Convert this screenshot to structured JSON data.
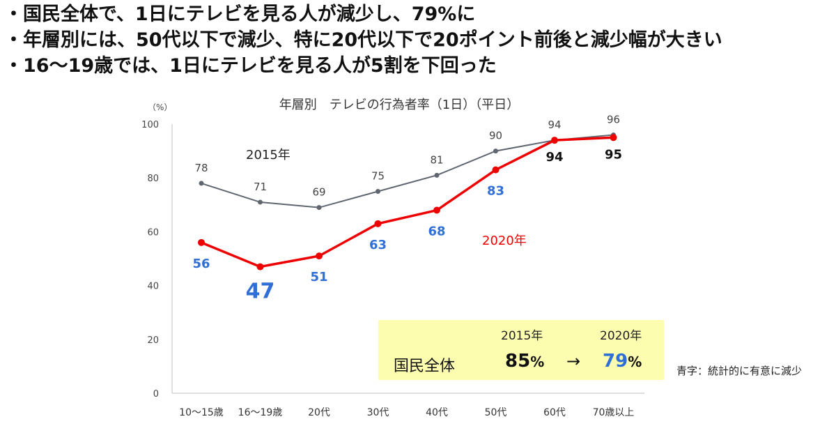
{
  "bullets": [
    "・国民全体で、1日にテレビを見る人が減少し、79%に",
    "・年層別には、50代以下で減少、特に20代以下で20ポイント前後と減少幅が大きい",
    "・16～19歳では、1日にテレビを見る人が5割を下回った"
  ],
  "chart_data": {
    "type": "line",
    "title": "年層別　テレビの行為者率（1日）（平日）",
    "ylabel": "（%）",
    "ylim": [
      0,
      100
    ],
    "yticks": [
      0,
      20,
      40,
      60,
      80,
      100
    ],
    "categories": [
      "10～15歳",
      "16～19歳",
      "20代",
      "30代",
      "40代",
      "50代",
      "60代",
      "70歳以上"
    ],
    "series": [
      {
        "name": "2015年",
        "values": [
          78,
          71,
          69,
          75,
          81,
          90,
          94,
          96
        ],
        "color": "#5f6670"
      },
      {
        "name": "2020年",
        "values": [
          56,
          47,
          51,
          63,
          68,
          83,
          94,
          95
        ],
        "color": "#ee0000"
      }
    ],
    "significant_color": "#2f6fd6",
    "significant_2020": [
      true,
      true,
      true,
      true,
      true,
      true,
      false,
      false
    ],
    "grid": false
  },
  "summary": {
    "year1": "2015年",
    "year2": "2020年",
    "label": "国民全体",
    "value1": "85",
    "arrow": "→",
    "value2": "79",
    "pct": "%"
  },
  "note": "青字：統計的に有意に減少"
}
